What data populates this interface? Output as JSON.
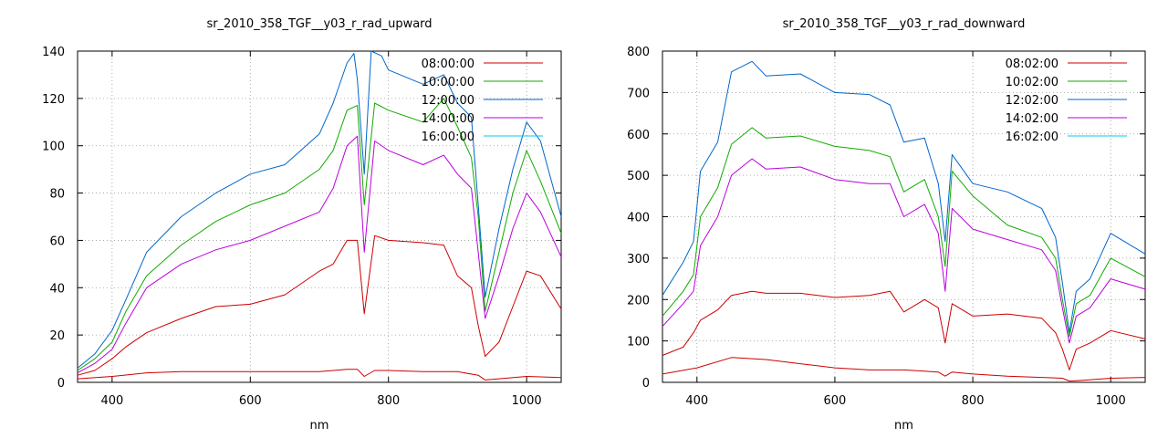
{
  "colors": {
    "c0800": "#cc0000",
    "c1000": "#11aa00",
    "c1200": "#0066cc",
    "c1400": "#bb00dd",
    "c1600": "#00ccee",
    "lower": "#aa2200"
  },
  "chart_data": [
    {
      "type": "line",
      "title": "sr_2010_358_TGF__y03_r_rad_upward",
      "xlabel": "nm",
      "ylabel": "",
      "xlim": [
        350,
        1050
      ],
      "ylim": [
        0,
        140
      ],
      "xticks": [
        400,
        600,
        800,
        1000
      ],
      "yticks": [
        0,
        20,
        40,
        60,
        80,
        100,
        120,
        140
      ],
      "grid": true,
      "legend_position": "top-right",
      "series": [
        {
          "name": "08:00:00",
          "color": "#cc0000",
          "x": [
            350,
            400,
            450,
            500,
            550,
            600,
            650,
            700,
            740,
            755,
            765,
            780,
            800,
            850,
            900,
            930,
            940,
            960,
            1000,
            1050
          ],
          "y": [
            1.5,
            2.5,
            4,
            4.5,
            4.5,
            4.5,
            4.5,
            4.5,
            5.5,
            5.5,
            2.5,
            5,
            5,
            4.5,
            4.5,
            3,
            1,
            1.5,
            2.5,
            2
          ]
        },
        {
          "name": "10:00:00",
          "color": "#11aa00",
          "x": [],
          "y": []
        },
        {
          "name": "12:00:00",
          "color": "#0066cc",
          "x": [],
          "y": []
        },
        {
          "name": "14:00:00",
          "color": "#bb00dd",
          "x": [],
          "y": []
        },
        {
          "name": "16:00:00",
          "color": "#00ccee",
          "x": [],
          "y": []
        },
        {
          "name": "",
          "color": "#cc0000",
          "x": [
            350,
            375,
            400,
            420,
            450,
            500,
            550,
            600,
            650,
            700,
            720,
            740,
            755,
            765,
            780,
            800,
            850,
            880,
            900,
            920,
            930,
            940,
            960,
            980,
            1000,
            1020,
            1050
          ],
          "y": [
            3,
            5,
            10,
            15,
            21,
            27,
            32,
            33,
            37,
            47,
            50,
            60,
            60,
            29,
            62,
            60,
            59,
            58,
            45,
            40,
            24,
            11,
            17,
            32,
            47,
            45,
            31
          ]
        },
        {
          "name": "",
          "color": "#11aa00",
          "x": [
            350,
            375,
            400,
            420,
            450,
            500,
            550,
            600,
            650,
            700,
            720,
            740,
            755,
            765,
            780,
            800,
            850,
            880,
            900,
            920,
            930,
            940,
            960,
            980,
            1000,
            1020,
            1050
          ],
          "y": [
            5,
            10,
            17,
            30,
            45,
            58,
            68,
            75,
            80,
            90,
            98,
            115,
            117,
            75,
            118,
            115,
            110,
            120,
            108,
            95,
            70,
            30,
            55,
            80,
            98,
            85,
            63
          ]
        },
        {
          "name": "",
          "color": "#0066cc",
          "x": [
            350,
            375,
            400,
            420,
            450,
            500,
            550,
            600,
            650,
            700,
            720,
            740,
            750,
            755,
            765,
            775,
            790,
            800,
            850,
            880,
            900,
            920,
            930,
            940,
            960,
            980,
            1000,
            1020,
            1050
          ],
          "y": [
            6,
            12,
            22,
            35,
            55,
            70,
            80,
            88,
            92,
            105,
            118,
            135,
            139,
            128,
            88,
            140,
            138,
            132,
            126,
            130,
            118,
            112,
            75,
            36,
            65,
            90,
            110,
            102,
            70
          ]
        },
        {
          "name": "",
          "color": "#bb00dd",
          "x": [
            350,
            375,
            400,
            420,
            450,
            500,
            550,
            600,
            650,
            700,
            720,
            740,
            755,
            765,
            780,
            800,
            850,
            880,
            900,
            920,
            930,
            940,
            960,
            980,
            1000,
            1020,
            1050
          ],
          "y": [
            4,
            8,
            14,
            25,
            40,
            50,
            56,
            60,
            66,
            72,
            82,
            100,
            104,
            55,
            102,
            98,
            92,
            96,
            88,
            82,
            55,
            27,
            45,
            65,
            80,
            72,
            53
          ]
        }
      ]
    },
    {
      "type": "line",
      "title": "sr_2010_358_TGF__y03_r_rad_downward",
      "xlabel": "nm",
      "ylabel": "",
      "xlim": [
        350,
        1050
      ],
      "ylim": [
        0,
        800
      ],
      "xticks": [
        400,
        600,
        800,
        1000
      ],
      "yticks": [
        0,
        100,
        200,
        300,
        400,
        500,
        600,
        700,
        800
      ],
      "grid": true,
      "legend_position": "top-right",
      "series": [
        {
          "name": "08:02:00",
          "color": "#cc0000",
          "x": [
            350,
            400,
            450,
            500,
            550,
            600,
            650,
            700,
            750,
            760,
            770,
            800,
            850,
            900,
            930,
            940,
            960,
            1000,
            1050
          ],
          "y": [
            20,
            35,
            60,
            55,
            45,
            35,
            30,
            30,
            25,
            15,
            25,
            20,
            15,
            12,
            10,
            3,
            5,
            10,
            12
          ]
        },
        {
          "name": "10:02:00",
          "color": "#11aa00",
          "x": [],
          "y": []
        },
        {
          "name": "12:02:00",
          "color": "#0066cc",
          "x": [],
          "y": []
        },
        {
          "name": "14:02:00",
          "color": "#bb00dd",
          "x": [],
          "y": []
        },
        {
          "name": "16:02:00",
          "color": "#00ccee",
          "x": [],
          "y": []
        },
        {
          "name": "",
          "color": "#cc0000",
          "x": [
            350,
            380,
            395,
            405,
            430,
            450,
            480,
            500,
            550,
            600,
            650,
            680,
            700,
            730,
            750,
            760,
            770,
            800,
            850,
            900,
            920,
            930,
            940,
            950,
            970,
            1000,
            1050
          ],
          "y": [
            65,
            85,
            120,
            150,
            175,
            210,
            220,
            215,
            215,
            205,
            210,
            220,
            170,
            200,
            180,
            95,
            190,
            160,
            165,
            155,
            120,
            80,
            30,
            80,
            95,
            125,
            105
          ]
        },
        {
          "name": "",
          "color": "#11aa00",
          "x": [
            350,
            380,
            395,
            405,
            430,
            450,
            480,
            500,
            550,
            600,
            650,
            680,
            700,
            730,
            750,
            760,
            770,
            800,
            850,
            900,
            920,
            930,
            940,
            950,
            970,
            1000,
            1050
          ],
          "y": [
            160,
            220,
            260,
            400,
            470,
            575,
            615,
            590,
            595,
            570,
            560,
            545,
            460,
            490,
            400,
            280,
            510,
            450,
            380,
            350,
            300,
            200,
            110,
            190,
            210,
            300,
            255
          ]
        },
        {
          "name": "",
          "color": "#0066cc",
          "x": [
            350,
            380,
            395,
            405,
            430,
            450,
            480,
            500,
            550,
            600,
            650,
            680,
            700,
            730,
            750,
            760,
            770,
            800,
            850,
            900,
            920,
            930,
            940,
            950,
            970,
            1000,
            1050
          ],
          "y": [
            210,
            290,
            340,
            510,
            580,
            750,
            775,
            740,
            745,
            700,
            695,
            670,
            580,
            590,
            480,
            340,
            550,
            480,
            460,
            420,
            350,
            240,
            120,
            220,
            250,
            360,
            310
          ]
        },
        {
          "name": "",
          "color": "#bb00dd",
          "x": [
            350,
            380,
            395,
            405,
            430,
            450,
            480,
            500,
            550,
            600,
            650,
            680,
            700,
            730,
            750,
            760,
            770,
            800,
            850,
            900,
            920,
            930,
            940,
            950,
            970,
            1000,
            1050
          ],
          "y": [
            135,
            190,
            220,
            330,
            400,
            500,
            540,
            515,
            520,
            490,
            480,
            480,
            400,
            430,
            360,
            220,
            420,
            370,
            345,
            320,
            270,
            180,
            95,
            160,
            180,
            250,
            225
          ]
        }
      ]
    }
  ]
}
